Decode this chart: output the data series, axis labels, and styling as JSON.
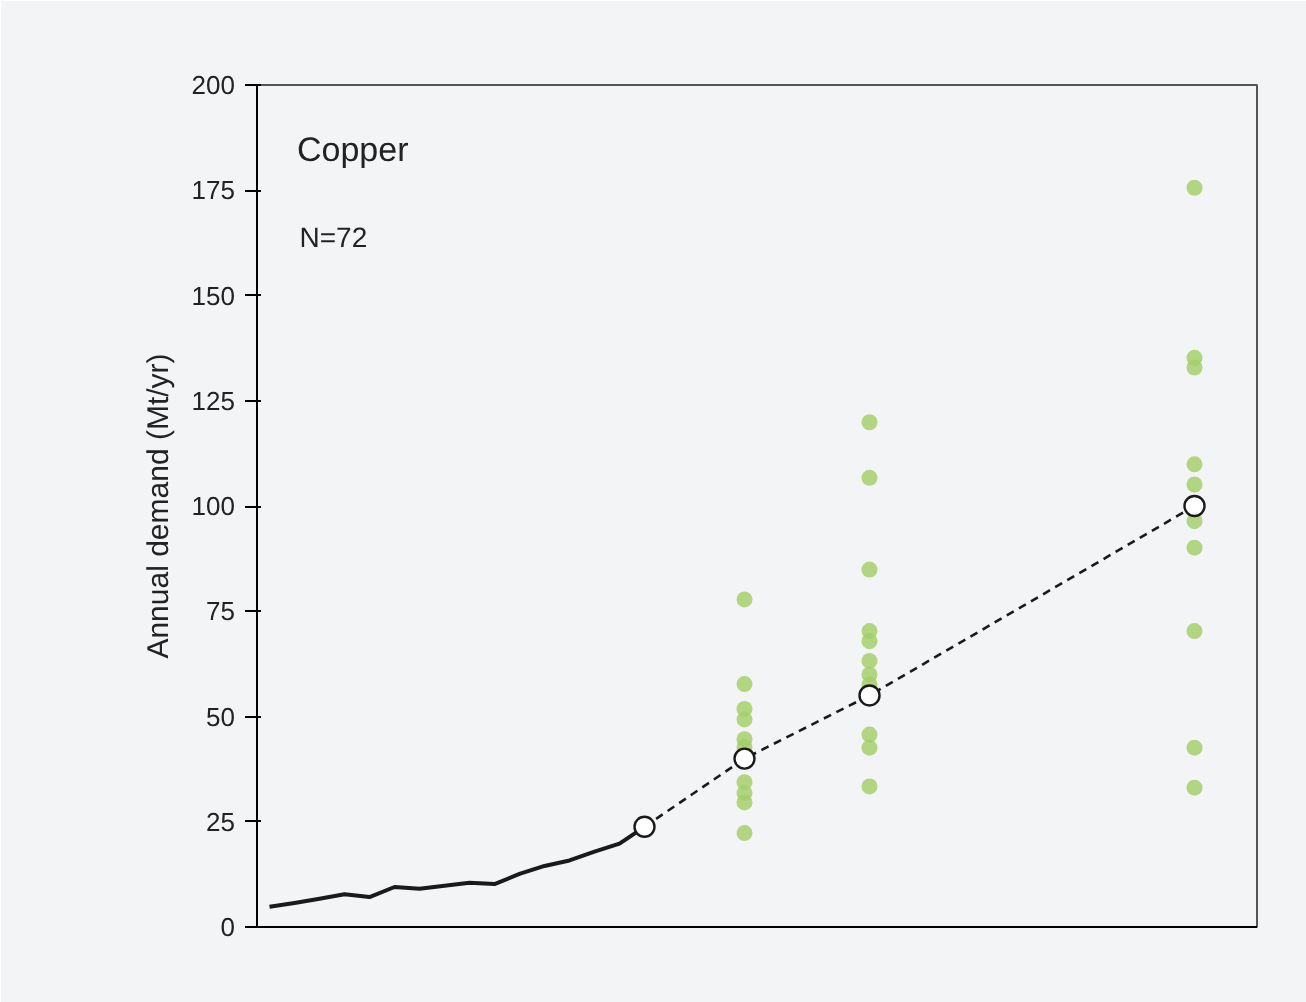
{
  "chart_data": {
    "type": "line",
    "ylabel": "Annual demand (Mt/yr)",
    "annotations": [
      "Copper",
      "N=72"
    ],
    "categories": [
      null,
      null,
      null,
      null,
      null,
      null,
      null,
      null,
      null,
      null,
      null,
      null,
      null,
      null,
      null,
      null,
      null,
      null,
      null,
      null,
      null,
      null,
      null,
      null,
      null,
      null,
      null,
      null,
      null,
      null,
      null,
      null,
      null,
      null,
      null,
      null,
      null,
      null,
      null,
      null
    ],
    "ylim": [
      0,
      200
    ],
    "yticks": [
      0,
      25,
      50,
      75,
      100,
      125,
      150,
      175,
      200
    ],
    "tick_labels": "y",
    "grid": false,
    "series": [
      {
        "color": "#1a1a1a",
        "line_style": "solid",
        "marker": "none",
        "values": [
          4.8,
          5.7,
          6.7,
          7.8,
          7.1,
          9.5,
          9.1,
          9.8,
          10.5,
          10.2,
          12.6,
          14.5,
          15.8,
          17.9,
          19.8,
          23.8,
          null,
          null,
          null,
          null,
          null,
          null,
          null,
          null,
          null,
          null,
          null,
          null,
          null,
          null,
          null,
          null,
          null,
          null,
          null,
          null,
          null,
          null,
          null,
          null
        ]
      },
      {
        "type": "scatter",
        "color": "#a5cf6b",
        "marker": "circle",
        "values": [
          null,
          null,
          null,
          null,
          null,
          null,
          null,
          null,
          null,
          null,
          null,
          null,
          null,
          null,
          null,
          null,
          null,
          null,
          null,
          77.8,
          null,
          null,
          null,
          null,
          119.9,
          null,
          null,
          null,
          null,
          null,
          null,
          null,
          null,
          null,
          null,
          null,
          null,
          175.6,
          null,
          null
        ]
      },
      {
        "type": "scatter",
        "color": "#a5cf6b",
        "marker": "circle",
        "values": [
          null,
          null,
          null,
          null,
          null,
          null,
          null,
          null,
          null,
          null,
          null,
          null,
          null,
          null,
          null,
          null,
          null,
          null,
          null,
          57.7,
          null,
          null,
          null,
          null,
          106.7,
          null,
          null,
          null,
          null,
          null,
          null,
          null,
          null,
          null,
          null,
          null,
          null,
          135.2,
          null,
          null
        ]
      },
      {
        "type": "scatter",
        "color": "#a5cf6b",
        "marker": "circle",
        "values": [
          null,
          null,
          null,
          null,
          null,
          null,
          null,
          null,
          null,
          null,
          null,
          null,
          null,
          null,
          null,
          null,
          null,
          null,
          null,
          51.8,
          null,
          null,
          null,
          null,
          84.9,
          null,
          null,
          null,
          null,
          null,
          null,
          null,
          null,
          null,
          null,
          null,
          null,
          132.9,
          null,
          null
        ]
      },
      {
        "type": "scatter",
        "color": "#a5cf6b",
        "marker": "circle",
        "values": [
          null,
          null,
          null,
          null,
          null,
          null,
          null,
          null,
          null,
          null,
          null,
          null,
          null,
          null,
          null,
          null,
          null,
          null,
          null,
          49.3,
          null,
          null,
          null,
          null,
          70.3,
          null,
          null,
          null,
          null,
          null,
          null,
          null,
          null,
          null,
          null,
          null,
          null,
          109.9,
          null,
          null
        ]
      },
      {
        "type": "scatter",
        "color": "#a5cf6b",
        "marker": "circle",
        "values": [
          null,
          null,
          null,
          null,
          null,
          null,
          null,
          null,
          null,
          null,
          null,
          null,
          null,
          null,
          null,
          null,
          null,
          null,
          null,
          44.6,
          null,
          null,
          null,
          null,
          67.9,
          null,
          null,
          null,
          null,
          null,
          null,
          null,
          null,
          null,
          null,
          null,
          null,
          105.1,
          null,
          null
        ]
      },
      {
        "type": "scatter",
        "color": "#a5cf6b",
        "marker": "circle",
        "values": [
          null,
          null,
          null,
          null,
          null,
          null,
          null,
          null,
          null,
          null,
          null,
          null,
          null,
          null,
          null,
          null,
          null,
          null,
          null,
          42.7,
          null,
          null,
          null,
          null,
          63.2,
          null,
          null,
          null,
          null,
          null,
          null,
          null,
          null,
          null,
          null,
          null,
          null,
          96.4,
          null,
          null
        ]
      },
      {
        "type": "scatter",
        "color": "#a5cf6b",
        "marker": "circle",
        "values": [
          null,
          null,
          null,
          null,
          null,
          null,
          null,
          null,
          null,
          null,
          null,
          null,
          null,
          null,
          null,
          null,
          null,
          null,
          null,
          34.4,
          null,
          null,
          null,
          null,
          60.0,
          null,
          null,
          null,
          null,
          null,
          null,
          null,
          null,
          null,
          null,
          null,
          null,
          90.1,
          null,
          null
        ]
      },
      {
        "type": "scatter",
        "color": "#a5cf6b",
        "marker": "circle",
        "values": [
          null,
          null,
          null,
          null,
          null,
          null,
          null,
          null,
          null,
          null,
          null,
          null,
          null,
          null,
          null,
          null,
          null,
          null,
          null,
          31.8,
          null,
          null,
          null,
          null,
          57.6,
          null,
          null,
          null,
          null,
          null,
          null,
          null,
          null,
          null,
          null,
          null,
          null,
          70.3,
          null,
          null
        ]
      },
      {
        "type": "scatter",
        "color": "#a5cf6b",
        "marker": "circle",
        "values": [
          null,
          null,
          null,
          null,
          null,
          null,
          null,
          null,
          null,
          null,
          null,
          null,
          null,
          null,
          null,
          null,
          null,
          null,
          null,
          29.6,
          null,
          null,
          null,
          null,
          45.7,
          null,
          null,
          null,
          null,
          null,
          null,
          null,
          null,
          null,
          null,
          null,
          null,
          42.6,
          null,
          null
        ]
      },
      {
        "type": "scatter",
        "color": "#a5cf6b",
        "marker": "circle",
        "values": [
          null,
          null,
          null,
          null,
          null,
          null,
          null,
          null,
          null,
          null,
          null,
          null,
          null,
          null,
          null,
          null,
          null,
          null,
          null,
          22.3,
          null,
          null,
          null,
          null,
          42.6,
          null,
          null,
          null,
          null,
          null,
          null,
          null,
          null,
          null,
          null,
          null,
          null,
          33.1,
          null,
          null
        ]
      },
      {
        "type": "scatter",
        "color": "#a5cf6b",
        "marker": "circle",
        "values": [
          null,
          null,
          null,
          null,
          null,
          null,
          null,
          null,
          null,
          null,
          null,
          null,
          null,
          null,
          null,
          null,
          null,
          null,
          null,
          null,
          null,
          null,
          null,
          null,
          33.4,
          null,
          null,
          null,
          null,
          null,
          null,
          null,
          null,
          null,
          null,
          null,
          null,
          null,
          null,
          null
        ]
      },
      {
        "color": "#1a1a1a",
        "line_style": "dashed",
        "marker": "circle",
        "values": [
          null,
          null,
          null,
          null,
          null,
          null,
          null,
          null,
          null,
          null,
          null,
          null,
          null,
          null,
          null,
          23.8,
          null,
          null,
          null,
          40,
          null,
          null,
          null,
          null,
          55,
          null,
          null,
          null,
          null,
          null,
          null,
          null,
          null,
          null,
          null,
          null,
          null,
          100,
          null,
          null
        ]
      }
    ]
  }
}
